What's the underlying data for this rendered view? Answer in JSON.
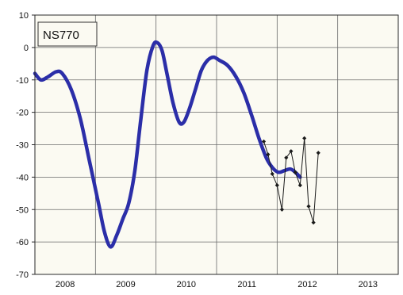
{
  "chart_data": {
    "type": "line",
    "title": "NS770",
    "xlabel": "",
    "ylabel": "",
    "xlim": [
      2007.5,
      2013.5
    ],
    "ylim": [
      -70,
      10
    ],
    "y_ticks": [
      10,
      0,
      -10,
      -20,
      -30,
      -40,
      -50,
      -60,
      -70
    ],
    "x_tick_labels": [
      {
        "x": 2008,
        "label": "2008"
      },
      {
        "x": 2009,
        "label": "2009"
      },
      {
        "x": 2010,
        "label": "2010"
      },
      {
        "x": 2011,
        "label": "2011"
      },
      {
        "x": 2012,
        "label": "2012"
      },
      {
        "x": 2013,
        "label": "2013"
      }
    ],
    "x_gridlines": [
      2008.5,
      2009.5,
      2010.5,
      2011.5,
      2012.5
    ],
    "grid": true,
    "series": [
      {
        "color": "#2b2ea8",
        "style": "smooth-thick",
        "points": [
          [
            2007.5,
            -8
          ],
          [
            2007.6,
            -10
          ],
          [
            2007.72,
            -9
          ],
          [
            2007.85,
            -7.5
          ],
          [
            2007.95,
            -8
          ],
          [
            2008.1,
            -13
          ],
          [
            2008.25,
            -22
          ],
          [
            2008.4,
            -35
          ],
          [
            2008.55,
            -48
          ],
          [
            2008.65,
            -57
          ],
          [
            2008.75,
            -61.5
          ],
          [
            2008.85,
            -58
          ],
          [
            2008.95,
            -53
          ],
          [
            2009.05,
            -48
          ],
          [
            2009.15,
            -38
          ],
          [
            2009.25,
            -22
          ],
          [
            2009.35,
            -7
          ],
          [
            2009.45,
            0.5
          ],
          [
            2009.52,
            1.5
          ],
          [
            2009.6,
            -1
          ],
          [
            2009.68,
            -8
          ],
          [
            2009.78,
            -17
          ],
          [
            2009.88,
            -23
          ],
          [
            2009.96,
            -23
          ],
          [
            2010.05,
            -19
          ],
          [
            2010.15,
            -13
          ],
          [
            2010.25,
            -7
          ],
          [
            2010.35,
            -4
          ],
          [
            2010.45,
            -3
          ],
          [
            2010.55,
            -4
          ],
          [
            2010.68,
            -5.5
          ],
          [
            2010.82,
            -9
          ],
          [
            2010.95,
            -14
          ],
          [
            2011.08,
            -21
          ],
          [
            2011.2,
            -28
          ],
          [
            2011.32,
            -34
          ],
          [
            2011.42,
            -37
          ],
          [
            2011.52,
            -38.5
          ],
          [
            2011.62,
            -38
          ],
          [
            2011.72,
            -37.5
          ],
          [
            2011.8,
            -38.5
          ],
          [
            2011.88,
            -40
          ]
        ]
      },
      {
        "color": "#1a1a1a",
        "style": "thin-markers",
        "points": [
          [
            2011.28,
            -29
          ],
          [
            2011.35,
            -33
          ],
          [
            2011.42,
            -39
          ],
          [
            2011.5,
            -42.5
          ],
          [
            2011.58,
            -50
          ],
          [
            2011.65,
            -34
          ],
          [
            2011.73,
            -32
          ],
          [
            2011.8,
            -38.5
          ],
          [
            2011.88,
            -42.5
          ],
          [
            2011.95,
            -28
          ],
          [
            2012.02,
            -49
          ],
          [
            2012.1,
            -54
          ],
          [
            2012.18,
            -32.5
          ]
        ]
      }
    ]
  }
}
